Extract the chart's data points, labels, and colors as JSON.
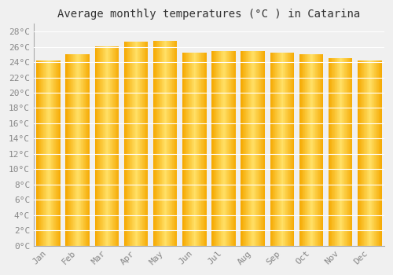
{
  "title": "Average monthly temperatures (°C ) in Catarina",
  "months": [
    "Jan",
    "Feb",
    "Mar",
    "Apr",
    "May",
    "Jun",
    "Jul",
    "Aug",
    "Sep",
    "Oct",
    "Nov",
    "Dec"
  ],
  "values": [
    24.2,
    25.0,
    26.1,
    26.7,
    26.8,
    25.2,
    25.4,
    25.5,
    25.2,
    25.0,
    24.5,
    24.2
  ],
  "bar_color_edge": "#F5A800",
  "bar_color_center": "#FFE066",
  "background_color": "#f0f0f0",
  "grid_color": "#ffffff",
  "ylim_max": 29,
  "ytick_step": 2,
  "title_fontsize": 10,
  "tick_fontsize": 8,
  "font_family": "monospace"
}
